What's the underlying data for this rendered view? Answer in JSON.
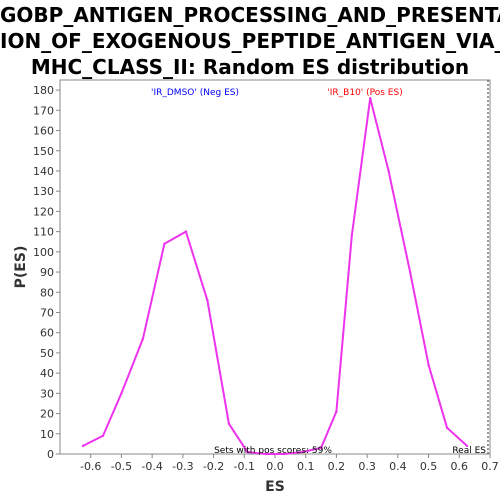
{
  "chart_data": {
    "type": "line",
    "title_lines": [
      "GOBP_ANTIGEN_PROCESSING_AND_PRESENTAT",
      "ION_OF_EXOGENOUS_PEPTIDE_ANTIGEN_VIA_",
      "MHC_CLASS_II: Random ES distribution"
    ],
    "xlabel": "ES",
    "ylabel": "P(ES)",
    "xlim": [
      -0.7,
      0.7
    ],
    "ylim": [
      0,
      185
    ],
    "x_ticks": [
      -0.6,
      -0.5,
      -0.4,
      -0.3,
      -0.2,
      -0.1,
      0.0,
      0.1,
      0.2,
      0.3,
      0.4,
      0.5,
      0.6,
      0.7
    ],
    "x_tick_labels": [
      "-0.6",
      "-0.5",
      "-0.4",
      "-0.3",
      "-0.2",
      "-0.1",
      "0.0",
      "0.1",
      "0.2",
      "0.3",
      "0.4",
      "0.5",
      "0.6",
      "0.7"
    ],
    "y_ticks": [
      0,
      10,
      20,
      30,
      40,
      50,
      60,
      70,
      80,
      90,
      100,
      110,
      120,
      130,
      140,
      150,
      160,
      170,
      180
    ],
    "y_tick_labels": [
      "0",
      "10",
      "20",
      "30",
      "40",
      "50",
      "60",
      "70",
      "80",
      "90",
      "100",
      "110",
      "120",
      "130",
      "140",
      "150",
      "160",
      "170",
      "180"
    ],
    "series": [
      {
        "color": "#ee33ee",
        "x": [
          -0.625,
          -0.56,
          -0.5,
          -0.43,
          -0.36,
          -0.29,
          -0.22,
          -0.15,
          -0.09,
          -0.03,
          0.03,
          0.09,
          0.15,
          0.2,
          0.25,
          0.31,
          0.37,
          0.44,
          0.5,
          0.56,
          0.625
        ],
        "y": [
          4,
          9,
          30,
          57,
          104,
          110,
          76,
          15,
          1,
          0,
          0,
          1,
          3,
          21,
          108,
          176,
          140,
          90,
          44,
          13,
          4
        ]
      }
    ],
    "annotations": {
      "neg_label": "'IR_DMSO' (Neg ES)",
      "pos_label": "'IR_B10' (Pos ES)",
      "pos_scores_text": "Sets with pos scores: 59%",
      "real_es_label": "Real ES",
      "neg_color": "#0000ff",
      "pos_color": "#ff0000"
    },
    "grid": false,
    "legend": "none"
  }
}
